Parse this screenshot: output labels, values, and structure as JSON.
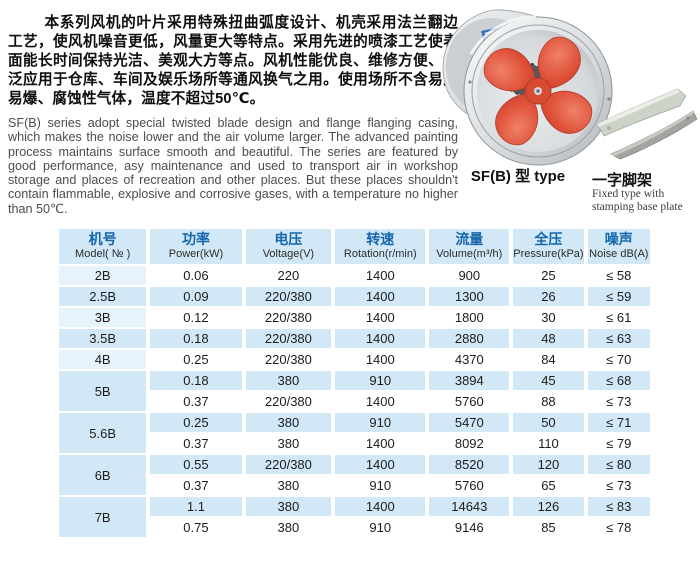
{
  "intro": {
    "zh": "本系列风机的叶片采用特殊扭曲弧度设计、机壳采用法兰翻边工艺，使风机噪音更低，风量更大等特点。采用先进的喷漆工艺使表面能长时间保持光洁、美观大方等点。风机性能优良、维修方便、广泛应用于仓库、车间及娱乐场所等通风换气之用。使用场所不含易燃易爆、腐蚀性气体，温度不超过50℃。",
    "en": "SF(B) series adopt special twisted blade design and flange flanging casing, which makes the noise lower and the air volume larger. The advanced painting process maintains surface smooth and beautiful. The series are featured by good performance, asy maintenance and used to transport air in workshop storage and places of recreation and other places. But these places shouldn't contain flammable, explosive and corrosive gases, with a temperature no higher than 50℃."
  },
  "images": {
    "fan_label": "SF(B) 型 type",
    "bracket_label_zh": "一字脚架",
    "bracket_label_en_1": "Fixed type with",
    "bracket_label_en_2": "stamping base plate"
  },
  "colors": {
    "row_blue": "#d2e8f6",
    "model_light_blue": "#e7f3fa",
    "header_text_blue": "#1566ac",
    "fan_blade_red": "#dd4f38"
  },
  "table": {
    "headers": [
      {
        "zh": "机号",
        "en": "Model( № )"
      },
      {
        "zh": "功率",
        "en": "Power(kW)"
      },
      {
        "zh": "电压",
        "en": "Voltage(V)"
      },
      {
        "zh": "转速",
        "en": "Rotation(r/min)"
      },
      {
        "zh": "流量",
        "en": "Volume(m³/h)"
      },
      {
        "zh": "全压",
        "en": "Pressure(kPa)"
      },
      {
        "zh": "噪声",
        "en": "Noise dB(A)"
      }
    ],
    "groups": [
      {
        "model": "2B",
        "rows": [
          [
            "0.06",
            "220",
            "1400",
            "900",
            "25",
            "≤ 58"
          ]
        ]
      },
      {
        "model": "2.5B",
        "rows": [
          [
            "0.09",
            "220/380",
            "1400",
            "1300",
            "26",
            "≤ 59"
          ]
        ]
      },
      {
        "model": "3B",
        "rows": [
          [
            "0.12",
            "220/380",
            "1400",
            "1800",
            "30",
            "≤ 61"
          ]
        ]
      },
      {
        "model": "3.5B",
        "rows": [
          [
            "0.18",
            "220/380",
            "1400",
            "2880",
            "48",
            "≤ 63"
          ]
        ]
      },
      {
        "model": "4B",
        "rows": [
          [
            "0.25",
            "220/380",
            "1400",
            "4370",
            "84",
            "≤ 70"
          ]
        ]
      },
      {
        "model": "5B",
        "rows": [
          [
            "0.18",
            "380",
            "910",
            "3894",
            "45",
            "≤ 68"
          ],
          [
            "0.37",
            "220/380",
            "1400",
            "5760",
            "88",
            "≤ 73"
          ]
        ]
      },
      {
        "model": "5.6B",
        "rows": [
          [
            "0.25",
            "380",
            "910",
            "5470",
            "50",
            "≤ 71"
          ],
          [
            "0.37",
            "380",
            "1400",
            "8092",
            "110",
            "≤ 79"
          ]
        ]
      },
      {
        "model": "6B",
        "rows": [
          [
            "0.55",
            "220/380",
            "1400",
            "8520",
            "120",
            "≤ 80"
          ],
          [
            "0.37",
            "380",
            "910",
            "5760",
            "65",
            "≤ 73"
          ]
        ]
      },
      {
        "model": "7B",
        "rows": [
          [
            "1.1",
            "380",
            "1400",
            "14643",
            "126",
            "≤ 83"
          ],
          [
            "0.75",
            "380",
            "910",
            "9146",
            "85",
            "≤ 78"
          ]
        ]
      }
    ]
  }
}
